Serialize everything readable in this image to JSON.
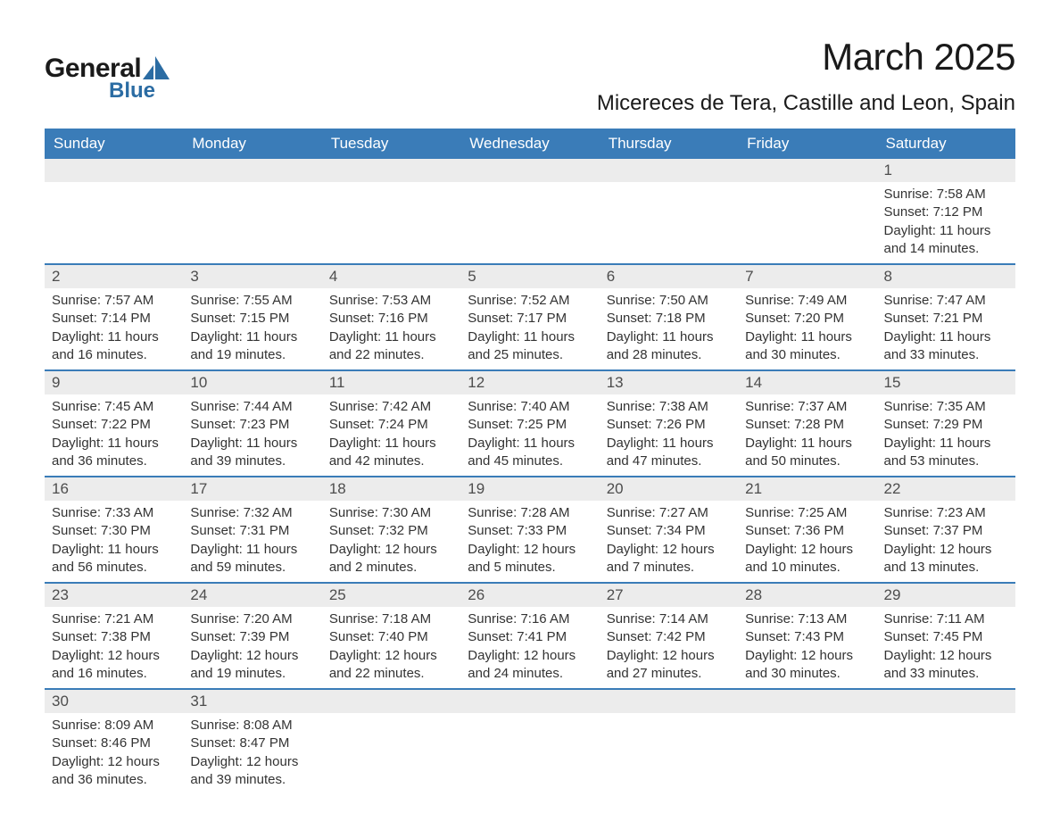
{
  "brand": {
    "word1": "General",
    "word2": "Blue",
    "accent_color": "#2b6ca3"
  },
  "title": "March 2025",
  "location": "Micereces de Tera, Castille and Leon, Spain",
  "colors": {
    "header_bg": "#3a7cb8",
    "header_text": "#ffffff",
    "band_bg": "#ececec",
    "band_text": "#4d4d4d",
    "body_text": "#333333",
    "rule": "#3a7cb8",
    "page_bg": "#ffffff"
  },
  "typography": {
    "title_fontsize": 42,
    "location_fontsize": 24,
    "dow_fontsize": 17,
    "daynum_fontsize": 17,
    "body_fontsize": 15,
    "font_family": "Arial"
  },
  "days_of_week": [
    "Sunday",
    "Monday",
    "Tuesday",
    "Wednesday",
    "Thursday",
    "Friday",
    "Saturday"
  ],
  "labels": {
    "sunrise": "Sunrise:",
    "sunset": "Sunset:",
    "daylight": "Daylight:"
  },
  "weeks": [
    [
      {
        "n": "",
        "sunrise": "",
        "sunset": "",
        "daylight": ""
      },
      {
        "n": "",
        "sunrise": "",
        "sunset": "",
        "daylight": ""
      },
      {
        "n": "",
        "sunrise": "",
        "sunset": "",
        "daylight": ""
      },
      {
        "n": "",
        "sunrise": "",
        "sunset": "",
        "daylight": ""
      },
      {
        "n": "",
        "sunrise": "",
        "sunset": "",
        "daylight": ""
      },
      {
        "n": "",
        "sunrise": "",
        "sunset": "",
        "daylight": ""
      },
      {
        "n": "1",
        "sunrise": "7:58 AM",
        "sunset": "7:12 PM",
        "daylight": "11 hours and 14 minutes."
      }
    ],
    [
      {
        "n": "2",
        "sunrise": "7:57 AM",
        "sunset": "7:14 PM",
        "daylight": "11 hours and 16 minutes."
      },
      {
        "n": "3",
        "sunrise": "7:55 AM",
        "sunset": "7:15 PM",
        "daylight": "11 hours and 19 minutes."
      },
      {
        "n": "4",
        "sunrise": "7:53 AM",
        "sunset": "7:16 PM",
        "daylight": "11 hours and 22 minutes."
      },
      {
        "n": "5",
        "sunrise": "7:52 AM",
        "sunset": "7:17 PM",
        "daylight": "11 hours and 25 minutes."
      },
      {
        "n": "6",
        "sunrise": "7:50 AM",
        "sunset": "7:18 PM",
        "daylight": "11 hours and 28 minutes."
      },
      {
        "n": "7",
        "sunrise": "7:49 AM",
        "sunset": "7:20 PM",
        "daylight": "11 hours and 30 minutes."
      },
      {
        "n": "8",
        "sunrise": "7:47 AM",
        "sunset": "7:21 PM",
        "daylight": "11 hours and 33 minutes."
      }
    ],
    [
      {
        "n": "9",
        "sunrise": "7:45 AM",
        "sunset": "7:22 PM",
        "daylight": "11 hours and 36 minutes."
      },
      {
        "n": "10",
        "sunrise": "7:44 AM",
        "sunset": "7:23 PM",
        "daylight": "11 hours and 39 minutes."
      },
      {
        "n": "11",
        "sunrise": "7:42 AM",
        "sunset": "7:24 PM",
        "daylight": "11 hours and 42 minutes."
      },
      {
        "n": "12",
        "sunrise": "7:40 AM",
        "sunset": "7:25 PM",
        "daylight": "11 hours and 45 minutes."
      },
      {
        "n": "13",
        "sunrise": "7:38 AM",
        "sunset": "7:26 PM",
        "daylight": "11 hours and 47 minutes."
      },
      {
        "n": "14",
        "sunrise": "7:37 AM",
        "sunset": "7:28 PM",
        "daylight": "11 hours and 50 minutes."
      },
      {
        "n": "15",
        "sunrise": "7:35 AM",
        "sunset": "7:29 PM",
        "daylight": "11 hours and 53 minutes."
      }
    ],
    [
      {
        "n": "16",
        "sunrise": "7:33 AM",
        "sunset": "7:30 PM",
        "daylight": "11 hours and 56 minutes."
      },
      {
        "n": "17",
        "sunrise": "7:32 AM",
        "sunset": "7:31 PM",
        "daylight": "11 hours and 59 minutes."
      },
      {
        "n": "18",
        "sunrise": "7:30 AM",
        "sunset": "7:32 PM",
        "daylight": "12 hours and 2 minutes."
      },
      {
        "n": "19",
        "sunrise": "7:28 AM",
        "sunset": "7:33 PM",
        "daylight": "12 hours and 5 minutes."
      },
      {
        "n": "20",
        "sunrise": "7:27 AM",
        "sunset": "7:34 PM",
        "daylight": "12 hours and 7 minutes."
      },
      {
        "n": "21",
        "sunrise": "7:25 AM",
        "sunset": "7:36 PM",
        "daylight": "12 hours and 10 minutes."
      },
      {
        "n": "22",
        "sunrise": "7:23 AM",
        "sunset": "7:37 PM",
        "daylight": "12 hours and 13 minutes."
      }
    ],
    [
      {
        "n": "23",
        "sunrise": "7:21 AM",
        "sunset": "7:38 PM",
        "daylight": "12 hours and 16 minutes."
      },
      {
        "n": "24",
        "sunrise": "7:20 AM",
        "sunset": "7:39 PM",
        "daylight": "12 hours and 19 minutes."
      },
      {
        "n": "25",
        "sunrise": "7:18 AM",
        "sunset": "7:40 PM",
        "daylight": "12 hours and 22 minutes."
      },
      {
        "n": "26",
        "sunrise": "7:16 AM",
        "sunset": "7:41 PM",
        "daylight": "12 hours and 24 minutes."
      },
      {
        "n": "27",
        "sunrise": "7:14 AM",
        "sunset": "7:42 PM",
        "daylight": "12 hours and 27 minutes."
      },
      {
        "n": "28",
        "sunrise": "7:13 AM",
        "sunset": "7:43 PM",
        "daylight": "12 hours and 30 minutes."
      },
      {
        "n": "29",
        "sunrise": "7:11 AM",
        "sunset": "7:45 PM",
        "daylight": "12 hours and 33 minutes."
      }
    ],
    [
      {
        "n": "30",
        "sunrise": "8:09 AM",
        "sunset": "8:46 PM",
        "daylight": "12 hours and 36 minutes."
      },
      {
        "n": "31",
        "sunrise": "8:08 AM",
        "sunset": "8:47 PM",
        "daylight": "12 hours and 39 minutes."
      },
      {
        "n": "",
        "sunrise": "",
        "sunset": "",
        "daylight": ""
      },
      {
        "n": "",
        "sunrise": "",
        "sunset": "",
        "daylight": ""
      },
      {
        "n": "",
        "sunrise": "",
        "sunset": "",
        "daylight": ""
      },
      {
        "n": "",
        "sunrise": "",
        "sunset": "",
        "daylight": ""
      },
      {
        "n": "",
        "sunrise": "",
        "sunset": "",
        "daylight": ""
      }
    ]
  ]
}
